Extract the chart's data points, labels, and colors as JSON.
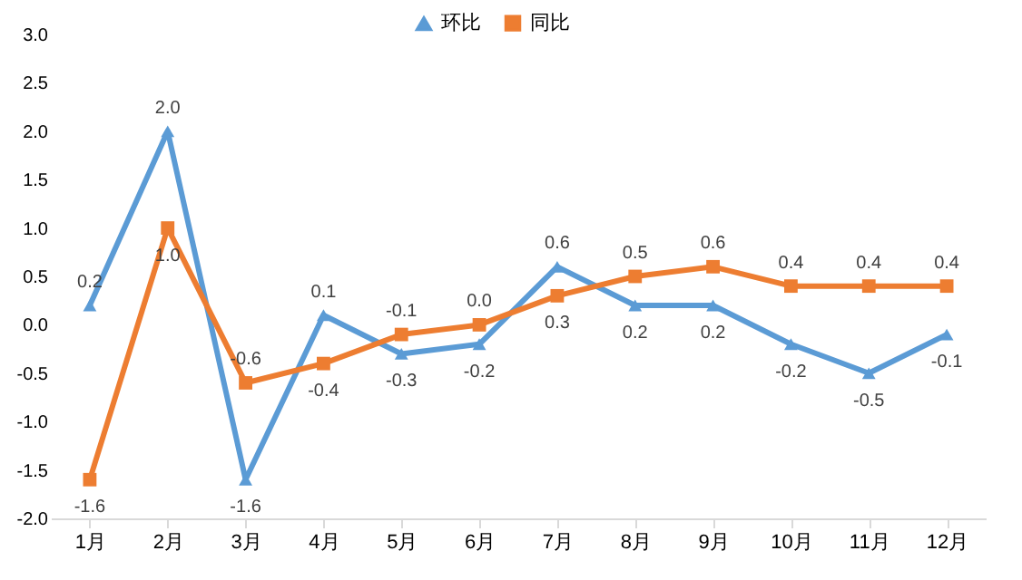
{
  "chart_data": {
    "type": "line",
    "categories": [
      "1月",
      "2月",
      "3月",
      "4月",
      "5月",
      "6月",
      "7月",
      "8月",
      "9月",
      "10月",
      "11月",
      "12月"
    ],
    "series": [
      {
        "name": "环比",
        "color": "#5b9bd5",
        "marker": "triangle",
        "values": [
          0.2,
          2.0,
          -1.6,
          0.1,
          -0.3,
          -0.2,
          0.6,
          0.2,
          0.2,
          -0.2,
          -0.5,
          -0.1
        ],
        "value_labels": [
          "0.2",
          "2.0",
          "-1.6",
          "0.1",
          "-0.3",
          "-0.2",
          "0.6",
          "0.2",
          "0.2",
          "-0.2",
          "-0.5",
          "-0.1"
        ]
      },
      {
        "name": "同比",
        "color": "#ed7d31",
        "marker": "square",
        "values": [
          -1.6,
          1.0,
          -0.6,
          -0.4,
          -0.1,
          0.0,
          0.3,
          0.5,
          0.6,
          0.4,
          0.4,
          0.4
        ],
        "value_labels": [
          "-1.6",
          "1.0",
          "-0.6",
          "-0.4",
          "-0.1",
          "0.0",
          "0.3",
          "0.5",
          "0.6",
          "0.4",
          "0.4",
          "0.4"
        ]
      }
    ],
    "ylim": [
      -2.0,
      3.0
    ],
    "yticks": [
      {
        "value": -2,
        "label": "-2.0"
      },
      {
        "value": -1.5,
        "label": "-1.5"
      },
      {
        "value": -1,
        "label": "-1.0"
      },
      {
        "value": -0.5,
        "label": "-0.5"
      },
      {
        "value": 0,
        "label": "0.0"
      },
      {
        "value": 0.5,
        "label": "0.5"
      },
      {
        "value": 1,
        "label": "1.0"
      },
      {
        "value": 1.5,
        "label": "1.5"
      },
      {
        "value": 2,
        "label": "2.0"
      },
      {
        "value": 2.5,
        "label": "2.5"
      },
      {
        "value": 3,
        "label": "3.0"
      }
    ],
    "grid": false,
    "legend": "top",
    "line_style": "solid"
  }
}
